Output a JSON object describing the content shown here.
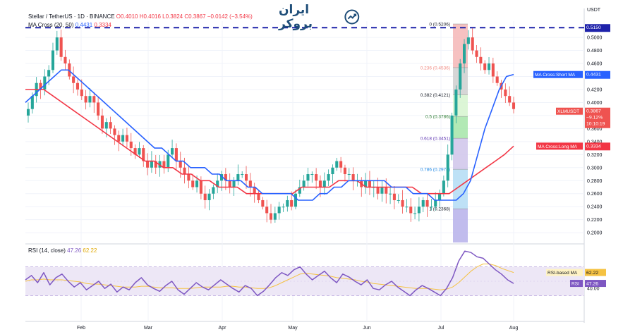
{
  "header": {
    "symbol_line": "Stellar / TetherUS · 1D · BINANCE",
    "ohlc": "O0.4010 H0.4016 L0.3824 C0.3867 −0.0142 (−3.54%)",
    "ma_line": "MA Cross (20, 50)",
    "ma_short": "0.4431",
    "ma_long": "0.3334",
    "rsi_line": "RSI (14, close)",
    "rsi_value": "47.26",
    "rsi_ma_value": "62.22"
  },
  "logo": {
    "text": "ایران بروکر",
    "icon": "trend-line-icon"
  },
  "colors": {
    "up": "#26a69a",
    "down": "#ef5350",
    "ma_short": "#2962ff",
    "ma_long": "#f23645",
    "rsi": "#7e57c2",
    "rsi_ma": "#f5c242",
    "rsi_band": "#ede7f6",
    "dash": "#1e22aa"
  },
  "chart_data": [
    {
      "type": "candlestick",
      "title": "Stellar / TetherUS · 1D · BINANCE",
      "currency_label": "USDT",
      "y_ticks": [
        "0.5000",
        "0.4800",
        "0.4600",
        "0.4400",
        "0.4200",
        "0.4000",
        "0.3800",
        "0.3600",
        "0.3400",
        "0.3200",
        "0.3000",
        "0.2800",
        "0.2600",
        "0.2400",
        "0.2200",
        "0.2000"
      ],
      "ylim": [
        0.185,
        0.525
      ],
      "x_ticks": [
        "Feb",
        "Mar",
        "Apr",
        "May",
        "Jun",
        "Jul",
        "Aug"
      ],
      "close_series": [
        0.39,
        0.41,
        0.43,
        0.42,
        0.44,
        0.45,
        0.48,
        0.5,
        0.47,
        0.46,
        0.44,
        0.43,
        0.42,
        0.41,
        0.4,
        0.41,
        0.4,
        0.38,
        0.36,
        0.37,
        0.36,
        0.35,
        0.34,
        0.35,
        0.34,
        0.33,
        0.32,
        0.33,
        0.31,
        0.3,
        0.31,
        0.3,
        0.31,
        0.3,
        0.32,
        0.33,
        0.31,
        0.3,
        0.29,
        0.28,
        0.27,
        0.28,
        0.26,
        0.25,
        0.26,
        0.27,
        0.28,
        0.29,
        0.28,
        0.27,
        0.28,
        0.29,
        0.29,
        0.28,
        0.27,
        0.26,
        0.25,
        0.24,
        0.23,
        0.22,
        0.23,
        0.24,
        0.24,
        0.25,
        0.24,
        0.26,
        0.27,
        0.28,
        0.29,
        0.29,
        0.28,
        0.27,
        0.28,
        0.29,
        0.3,
        0.31,
        0.3,
        0.29,
        0.29,
        0.28,
        0.28,
        0.27,
        0.28,
        0.27,
        0.27,
        0.26,
        0.27,
        0.26,
        0.26,
        0.25,
        0.25,
        0.24,
        0.24,
        0.23,
        0.23,
        0.24,
        0.25,
        0.24,
        0.24,
        0.25,
        0.26,
        0.28,
        0.32,
        0.38,
        0.42,
        0.46,
        0.49,
        0.5,
        0.48,
        0.47,
        0.46,
        0.45,
        0.46,
        0.44,
        0.43,
        0.42,
        0.41,
        0.4,
        0.39
      ],
      "series": [
        {
          "name": "MA Cross:Short MA",
          "value_label": "0.4431"
        },
        {
          "name": "MA Cross:Long MA",
          "value_label": "0.3334"
        }
      ],
      "ma_short": [
        0.4,
        0.41,
        0.42,
        0.43,
        0.44,
        0.45,
        0.45,
        0.44,
        0.43,
        0.42,
        0.41,
        0.4,
        0.39,
        0.38,
        0.37,
        0.36,
        0.35,
        0.34,
        0.33,
        0.33,
        0.32,
        0.31,
        0.31,
        0.3,
        0.3,
        0.3,
        0.29,
        0.29,
        0.28,
        0.28,
        0.28,
        0.27,
        0.27,
        0.26,
        0.26,
        0.26,
        0.26,
        0.26,
        0.25,
        0.25,
        0.25,
        0.26,
        0.26,
        0.27,
        0.27,
        0.28,
        0.28,
        0.28,
        0.28,
        0.28,
        0.28,
        0.27,
        0.27,
        0.27,
        0.26,
        0.26,
        0.26,
        0.25,
        0.25,
        0.25,
        0.25,
        0.26,
        0.28,
        0.32,
        0.36,
        0.39,
        0.42,
        0.44,
        0.443
      ],
      "ma_long": [
        0.42,
        0.42,
        0.42,
        0.41,
        0.4,
        0.39,
        0.38,
        0.37,
        0.36,
        0.35,
        0.34,
        0.33,
        0.32,
        0.31,
        0.31,
        0.3,
        0.3,
        0.29,
        0.29,
        0.28,
        0.28,
        0.27,
        0.27,
        0.27,
        0.26,
        0.26,
        0.26,
        0.26,
        0.26,
        0.26,
        0.27,
        0.27,
        0.27,
        0.27,
        0.28,
        0.28,
        0.28,
        0.27,
        0.27,
        0.27,
        0.27,
        0.27,
        0.27,
        0.26,
        0.26,
        0.26,
        0.26,
        0.27,
        0.28,
        0.29,
        0.3,
        0.31,
        0.32,
        0.333
      ],
      "fibonacci": [
        {
          "level": "0",
          "label": "0 (0.5206)",
          "value": 0.5206
        },
        {
          "level": "0.236",
          "label": "0.236 (0.4536)",
          "value": 0.4536
        },
        {
          "level": "0.382",
          "label": "0.382 (0.4121)",
          "value": 0.4121
        },
        {
          "level": "0.5",
          "label": "0.5 (0.3786)",
          "value": 0.3786
        },
        {
          "level": "0.618",
          "label": "0.618 (0.3451)",
          "value": 0.3451
        },
        {
          "level": "0.786",
          "label": "0.786 (0.2974)",
          "value": 0.2974
        },
        {
          "level": "1",
          "label": "1 (0.2368)",
          "value": 0.2368
        }
      ],
      "resistance_line": 0.515,
      "resistance_label": "0.5150",
      "price_tag": {
        "name": "XLMUSDT",
        "value": "0.3867",
        "change": "−9.12%",
        "countdown": "10:10:19"
      }
    },
    {
      "type": "line",
      "title": "RSI (14, close)",
      "ylim": [
        0,
        100
      ],
      "y_ticks": [
        "40.00"
      ],
      "band": [
        30,
        70
      ],
      "series": [
        {
          "name": "RSI",
          "value_label": "47.26",
          "values": [
            52,
            58,
            48,
            62,
            45,
            55,
            60,
            50,
            42,
            48,
            38,
            44,
            50,
            40,
            46,
            35,
            42,
            38,
            48,
            55,
            45,
            40,
            36,
            44,
            50,
            38,
            32,
            40,
            48,
            42,
            38,
            45,
            52,
            46,
            40,
            35,
            44,
            40,
            30,
            36,
            45,
            55,
            62,
            58,
            66,
            70,
            60,
            52,
            58,
            64,
            55,
            48,
            60,
            56,
            50,
            45,
            52,
            40,
            38,
            45,
            50,
            42,
            36,
            30,
            38,
            44,
            40,
            35,
            30,
            40,
            55,
            78,
            92,
            90,
            84,
            82,
            74,
            66,
            60,
            52,
            47
          ]
        },
        {
          "name": "RSI-based MA",
          "value_label": "62.22",
          "values": [
            50,
            52,
            52,
            53,
            52,
            52,
            52,
            51,
            50,
            49,
            47,
            46,
            46,
            45,
            44,
            43,
            42,
            42,
            42,
            43,
            43,
            42,
            41,
            41,
            41,
            40,
            40,
            40,
            41,
            42,
            42,
            42,
            42,
            43,
            43,
            42,
            42,
            41,
            40,
            40,
            41,
            44,
            48,
            52,
            56,
            60,
            61,
            60,
            59,
            58,
            57,
            55,
            54,
            53,
            52,
            50,
            49,
            47,
            46,
            45,
            44,
            43,
            42,
            41,
            40,
            40,
            40,
            39,
            38,
            39,
            42,
            48,
            56,
            64,
            70,
            74,
            74,
            72,
            68,
            65,
            62.2
          ]
        }
      ]
    }
  ]
}
